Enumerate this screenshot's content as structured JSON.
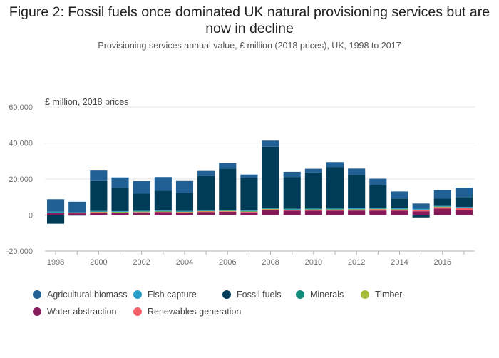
{
  "chart_data": {
    "type": "bar",
    "stacked": true,
    "title": "Figure 2: Fossil fuels once dominated UK natural provisioning services but are now in decline",
    "subtitle": "Provisioning services annual value, £ million (2018 prices), UK, 1998 to 2017",
    "ylabel": "£ million, 2018 prices",
    "xlabel": "",
    "ylim": [
      -20000,
      60000
    ],
    "yticks": [
      -20000,
      0,
      20000,
      40000,
      60000
    ],
    "ytick_labels": [
      "-20,000",
      "0",
      "20,000",
      "40,000",
      "60,000"
    ],
    "xtick_labels": [
      "1998",
      "2000",
      "2002",
      "2004",
      "2006",
      "2008",
      "2010",
      "2012",
      "2014",
      "2016"
    ],
    "categories": [
      "1998",
      "1999",
      "2000",
      "2001",
      "2002",
      "2003",
      "2004",
      "2005",
      "2006",
      "2007",
      "2008",
      "2009",
      "2010",
      "2011",
      "2012",
      "2013",
      "2014",
      "2015",
      "2016",
      "2017"
    ],
    "grid": true,
    "legend_position": "bottom",
    "series": [
      {
        "name": "Water abstraction",
        "color": "#871a5b",
        "values": [
          1100,
          1000,
          1400,
          1300,
          1500,
          1600,
          1400,
          1700,
          1800,
          1500,
          2800,
          2400,
          2400,
          2400,
          2500,
          2500,
          2400,
          2100,
          3600,
          2900
        ]
      },
      {
        "name": "Renewables generation",
        "color": "#f66068",
        "values": [
          300,
          100,
          200,
          100,
          200,
          200,
          200,
          300,
          300,
          300,
          400,
          400,
          500,
          500,
          500,
          700,
          600,
          600,
          800,
          900
        ]
      },
      {
        "name": "Timber",
        "color": "#a8bd3a",
        "values": [
          100,
          100,
          300,
          400,
          300,
          300,
          300,
          300,
          300,
          300,
          300,
          300,
          300,
          300,
          300,
          300,
          300,
          300,
          300,
          300
        ]
      },
      {
        "name": "Minerals",
        "color": "#118c7b",
        "values": [
          100,
          100,
          100,
          100,
          100,
          100,
          100,
          100,
          100,
          100,
          100,
          100,
          100,
          100,
          100,
          100,
          100,
          100,
          100,
          100
        ]
      },
      {
        "name": "Fish capture",
        "color": "#27a0cc",
        "values": [
          300,
          300,
          300,
          300,
          300,
          300,
          300,
          300,
          300,
          300,
          300,
          300,
          300,
          300,
          300,
          300,
          300,
          300,
          300,
          300
        ]
      },
      {
        "name": "Fossil fuels",
        "color": "#003c57",
        "values": [
          -4800,
          -300,
          16600,
          12800,
          9500,
          11000,
          9800,
          19000,
          23000,
          18000,
          34000,
          17500,
          20000,
          23100,
          18600,
          12800,
          5500,
          -1300,
          4000,
          5500
        ]
      },
      {
        "name": "Agricultural biomass",
        "color": "#206095",
        "values": [
          6900,
          5800,
          5800,
          5900,
          6900,
          7600,
          6800,
          2800,
          3100,
          2000,
          3400,
          3000,
          2100,
          2700,
          3500,
          3500,
          3900,
          3000,
          4800,
          5200
        ]
      }
    ]
  },
  "legend_rows": [
    [
      {
        "label": "Agricultural biomass",
        "color": "#206095"
      },
      {
        "label": "Fish capture",
        "color": "#27a0cc"
      },
      {
        "label": "Fossil fuels",
        "color": "#003c57"
      },
      {
        "label": "Minerals",
        "color": "#118c7b"
      },
      {
        "label": "Timber",
        "color": "#a8bd3a"
      }
    ],
    [
      {
        "label": "Water abstraction",
        "color": "#871a5b"
      },
      {
        "label": "Renewables generation",
        "color": "#f66068"
      }
    ]
  ]
}
